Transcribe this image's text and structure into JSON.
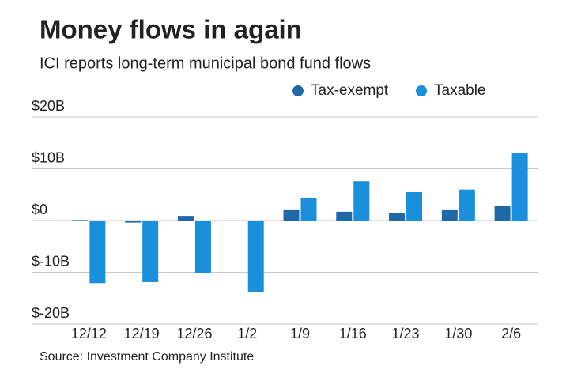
{
  "chart_data": {
    "type": "bar",
    "title": "Money flows in again",
    "subtitle": "ICI reports long-term municipal bond fund flows",
    "source": "Source: Investment Company Institute",
    "categories": [
      "12/12",
      "12/19",
      "12/26",
      "1/2",
      "1/9",
      "1/16",
      "1/23",
      "1/30",
      "2/6"
    ],
    "series": [
      {
        "name": "Tax-exempt",
        "color": "#1f69a8",
        "values": [
          0.1,
          -0.4,
          0.9,
          -0.1,
          2.0,
          1.7,
          1.5,
          2.0,
          2.9
        ]
      },
      {
        "name": "Taxable",
        "color": "#1a8fdc",
        "values": [
          -12.1,
          -11.9,
          -10.1,
          -13.9,
          4.4,
          7.6,
          5.5,
          6.0,
          13.1
        ]
      }
    ],
    "ylim": [
      -20,
      20
    ],
    "yticks": [
      {
        "value": -20,
        "label": "$-20B"
      },
      {
        "value": -10,
        "label": "$-10B"
      },
      {
        "value": 0,
        "label": "$0"
      },
      {
        "value": 10,
        "label": "$10B"
      },
      {
        "value": 20,
        "label": "$20B"
      }
    ],
    "grid": true
  }
}
